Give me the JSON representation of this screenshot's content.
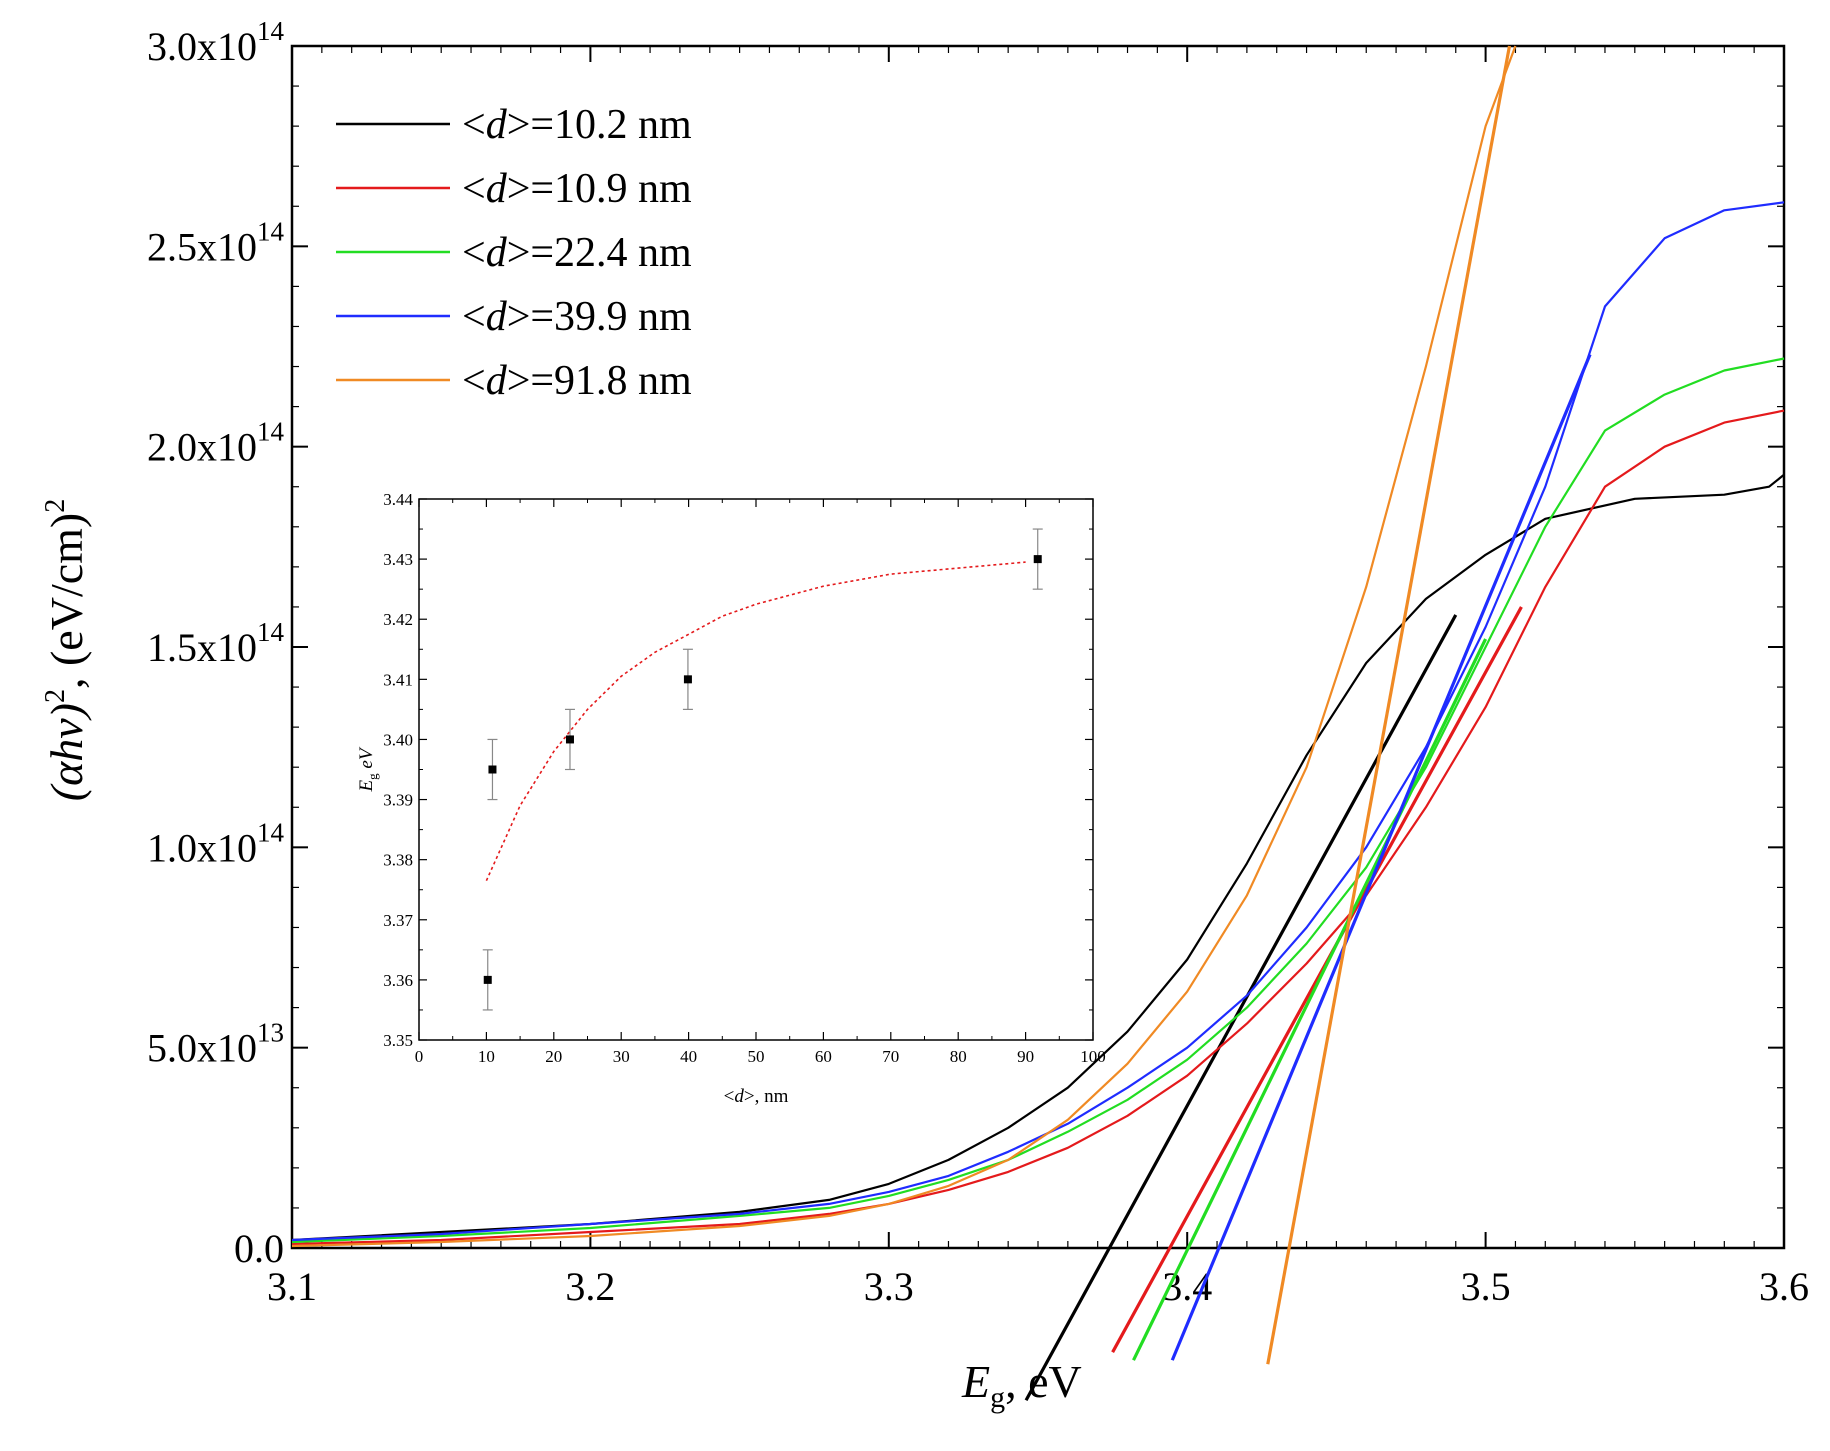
{
  "chart_data": [
    {
      "type": "line",
      "title": "",
      "xlabel": "E_g, eV",
      "xlabel_main": "E",
      "xlabel_sub": "g",
      "xlabel_rest": ", eV",
      "ylabel": "(αhν)², (eV/cm)²",
      "ylabel_left": "(",
      "ylabel_alpha": "αhν",
      "ylabel_mid": ")",
      "ylabel_sup1": "2",
      "ylabel_rest": ", (eV/cm)",
      "ylabel_sup2": "2",
      "xlim": [
        3.1,
        3.6
      ],
      "ylim": [
        0,
        300000000000000.0
      ],
      "x_ticks": [
        3.1,
        3.2,
        3.3,
        3.4,
        3.5,
        3.6
      ],
      "x_tick_labels": [
        "3.1",
        "3.2",
        "3.3",
        "3.4",
        "3.5",
        "3.6"
      ],
      "y_ticks": [
        0,
        50000000000000.0,
        100000000000000.0,
        150000000000000.0,
        200000000000000.0,
        250000000000000.0,
        300000000000000.0
      ],
      "y_tick_labels": [
        {
          "mant": "0.0",
          "exp": ""
        },
        {
          "mant": "5.0x10",
          "exp": "13"
        },
        {
          "mant": "1.0x10",
          "exp": "14"
        },
        {
          "mant": "1.5x10",
          "exp": "14"
        },
        {
          "mant": "2.0x10",
          "exp": "14"
        },
        {
          "mant": "2.5x10",
          "exp": "14"
        },
        {
          "mant": "3.0x10",
          "exp": "14"
        }
      ],
      "legend_position": "top-left",
      "series": [
        {
          "name": "<d>=10.2 nm",
          "legend_pre": "<",
          "legend_var": "d",
          "legend_post": ">=10.2 nm",
          "color": "#000000",
          "x": [
            3.1,
            3.15,
            3.2,
            3.25,
            3.28,
            3.3,
            3.32,
            3.34,
            3.36,
            3.38,
            3.4,
            3.42,
            3.44,
            3.46,
            3.48,
            3.5,
            3.52,
            3.55,
            3.58,
            3.595,
            3.6
          ],
          "y": [
            2000000000000.0,
            4000000000000.0,
            6000000000000.0,
            9000000000000.0,
            12000000000000.0,
            16000000000000.0,
            22000000000000.0,
            30000000000000.0,
            40000000000000.0,
            54000000000000.0,
            72000000000000.0,
            96000000000000.0,
            123000000000000.0,
            146000000000000.0,
            162000000000000.0,
            173000000000000.0,
            182000000000000.0,
            187000000000000.0,
            188000000000000.0,
            190000000000000.0,
            193000000000000.0
          ],
          "tangent": {
            "x": [
              3.346,
              3.49
            ],
            "y": [
              -38000000000000.0,
              158000000000000.0
            ]
          }
        },
        {
          "name": "<d>=10.9 nm",
          "legend_pre": "<",
          "legend_var": "d",
          "legend_post": ">=10.9 nm",
          "color": "#e41a1c",
          "x": [
            3.1,
            3.15,
            3.2,
            3.25,
            3.28,
            3.3,
            3.32,
            3.34,
            3.36,
            3.38,
            3.4,
            3.42,
            3.44,
            3.46,
            3.48,
            3.5,
            3.52,
            3.54,
            3.56,
            3.58,
            3.6
          ],
          "y": [
            1000000000000.0,
            2000000000000.0,
            4000000000000.0,
            6000000000000.0,
            8500000000000.0,
            11000000000000.0,
            14500000000000.0,
            19000000000000.0,
            25000000000000.0,
            33000000000000.0,
            43000000000000.0,
            56000000000000.0,
            71000000000000.0,
            88000000000000.0,
            110000000000000.0,
            135000000000000.0,
            165000000000000.0,
            190000000000000.0,
            200000000000000.0,
            206000000000000.0,
            209000000000000.0
          ],
          "tangent": {
            "x": [
              3.375,
              3.512
            ],
            "y": [
              -26000000000000.0,
              160000000000000.0
            ]
          }
        },
        {
          "name": "<d>=22.4 nm",
          "legend_pre": "<",
          "legend_var": "d",
          "legend_post": ">=22.4 nm",
          "color": "#22dd22",
          "x": [
            3.1,
            3.15,
            3.2,
            3.25,
            3.28,
            3.3,
            3.32,
            3.34,
            3.36,
            3.38,
            3.4,
            3.42,
            3.44,
            3.46,
            3.48,
            3.5,
            3.52,
            3.54,
            3.56,
            3.58,
            3.6
          ],
          "y": [
            1500000000000.0,
            3000000000000.0,
            5000000000000.0,
            8000000000000.0,
            10000000000000.0,
            13000000000000.0,
            17000000000000.0,
            22000000000000.0,
            29000000000000.0,
            37000000000000.0,
            47000000000000.0,
            60000000000000.0,
            76000000000000.0,
            95000000000000.0,
            120000000000000.0,
            150000000000000.0,
            180000000000000.0,
            204000000000000.0,
            213000000000000.0,
            219000000000000.0,
            222000000000000.0
          ],
          "tangent": {
            "x": [
              3.382,
              3.5
            ],
            "y": [
              -28000000000000.0,
              152000000000000.0
            ]
          }
        },
        {
          "name": "<d>=39.9 nm",
          "legend_pre": "<",
          "legend_var": "d",
          "legend_post": ">=39.9 nm",
          "color": "#1f2cff",
          "x": [
            3.1,
            3.15,
            3.2,
            3.25,
            3.28,
            3.3,
            3.32,
            3.34,
            3.36,
            3.38,
            3.4,
            3.42,
            3.44,
            3.46,
            3.48,
            3.5,
            3.52,
            3.54,
            3.56,
            3.58,
            3.6
          ],
          "y": [
            2000000000000.0,
            3500000000000.0,
            6000000000000.0,
            8500000000000.0,
            11000000000000.0,
            14000000000000.0,
            18000000000000.0,
            24000000000000.0,
            31000000000000.0,
            40000000000000.0,
            50000000000000.0,
            63000000000000.0,
            80000000000000.0,
            100000000000000.0,
            125000000000000.0,
            155000000000000.0,
            190000000000000.0,
            235000000000000.0,
            252000000000000.0,
            259000000000000.0,
            261000000000000.0
          ],
          "tangent": {
            "x": [
              3.395,
              3.535
            ],
            "y": [
              -28000000000000.0,
              223000000000000.0
            ]
          }
        },
        {
          "name": "<d>=91.8 nm",
          "legend_pre": "<",
          "legend_var": "d",
          "legend_post": ">=91.8 nm",
          "color": "#f08a24",
          "x": [
            3.1,
            3.15,
            3.2,
            3.25,
            3.28,
            3.3,
            3.32,
            3.34,
            3.36,
            3.38,
            3.4,
            3.42,
            3.44,
            3.46,
            3.48,
            3.5,
            3.51
          ],
          "y": [
            500000000000.0,
            1500000000000.0,
            3000000000000.0,
            5500000000000.0,
            8000000000000.0,
            11000000000000.0,
            15500000000000.0,
            22000000000000.0,
            32000000000000.0,
            46000000000000.0,
            64000000000000.0,
            88000000000000.0,
            120000000000000.0,
            165000000000000.0,
            220000000000000.0,
            280000000000000.0,
            300000000000000.0
          ],
          "tangent": {
            "x": [
              3.427,
              3.508
            ],
            "y": [
              -29000000000000.0,
              300000000000000.0
            ]
          }
        }
      ]
    },
    {
      "type": "scatter",
      "position": "inset",
      "title": "",
      "xlabel": "<d>, nm",
      "xlabel_pre": "<",
      "xlabel_var": "d",
      "xlabel_post": ">, nm",
      "ylabel": "E_g eV",
      "ylabel_main": "E",
      "ylabel_sub": "g",
      "ylabel_rest": " eV",
      "xlim": [
        0,
        100
      ],
      "ylim": [
        3.35,
        3.44
      ],
      "x_tick_labels": [
        "0",
        "10",
        "20",
        "30",
        "40",
        "50",
        "60",
        "70",
        "80",
        "90",
        "100"
      ],
      "x_ticks": [
        0,
        10,
        20,
        30,
        40,
        50,
        60,
        70,
        80,
        90,
        100
      ],
      "y_tick_labels": [
        "3.35",
        "3.36",
        "3.37",
        "3.38",
        "3.39",
        "3.40",
        "3.41",
        "3.42",
        "3.43",
        "3.44"
      ],
      "y_ticks": [
        3.35,
        3.36,
        3.37,
        3.38,
        3.39,
        3.4,
        3.41,
        3.42,
        3.43,
        3.44
      ],
      "points": [
        {
          "x": 10.2,
          "y": 3.36,
          "err": 0.005
        },
        {
          "x": 10.9,
          "y": 3.395,
          "err": 0.005
        },
        {
          "x": 22.4,
          "y": 3.4,
          "err": 0.005
        },
        {
          "x": 39.9,
          "y": 3.41,
          "err": 0.005
        },
        {
          "x": 91.8,
          "y": 3.43,
          "err": 0.005
        }
      ],
      "fit": {
        "color": "#e41a1c",
        "style": "dotted",
        "x": [
          10,
          15,
          20,
          25,
          30,
          35,
          40,
          45,
          50,
          60,
          70,
          80,
          90
        ],
        "y": [
          3.3765,
          3.389,
          3.398,
          3.405,
          3.4105,
          3.4145,
          3.4175,
          3.4205,
          3.4225,
          3.4255,
          3.4275,
          3.4285,
          3.4295
        ]
      }
    }
  ]
}
